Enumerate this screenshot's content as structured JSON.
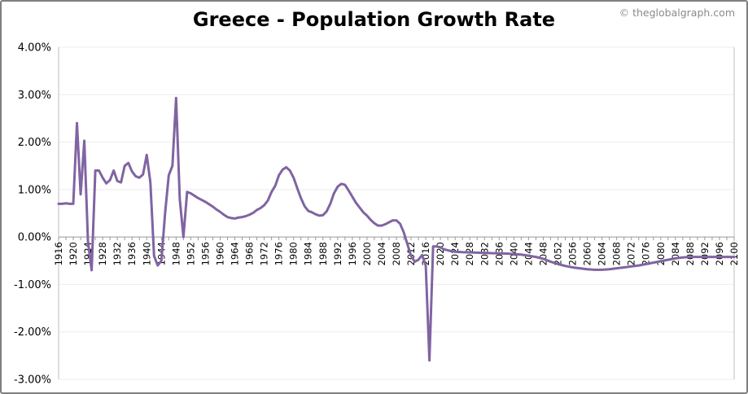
{
  "title": "Greece - Population Growth Rate",
  "credit": "© theglobalgraph.com",
  "chart_data": {
    "type": "line",
    "title": "Greece - Population Growth Rate",
    "xlabel": "",
    "ylabel": "",
    "ylim": [
      -3.0,
      4.0
    ],
    "xlim": [
      1916,
      2100
    ],
    "grid": true,
    "line_color": "#8064a2",
    "y_ticks": [
      {
        "value": 4.0,
        "label": "4.00%"
      },
      {
        "value": 3.0,
        "label": "3.00%"
      },
      {
        "value": 2.0,
        "label": "2.00%"
      },
      {
        "value": 1.0,
        "label": "1.00%"
      },
      {
        "value": 0.0,
        "label": "0.00%"
      },
      {
        "value": -1.0,
        "label": "-1.00%"
      },
      {
        "value": -2.0,
        "label": "-2.00%"
      },
      {
        "value": -3.0,
        "label": "-3.00%"
      }
    ],
    "x_ticks": [
      "1916",
      "1920",
      "1924",
      "1928",
      "1932",
      "1936",
      "1940",
      "1944",
      "1948",
      "1952",
      "1956",
      "1960",
      "1964",
      "1968",
      "1972",
      "1976",
      "1980",
      "1984",
      "1988",
      "1992",
      "1996",
      "2000",
      "2004",
      "2008",
      "2012",
      "2016",
      "2020",
      "2024",
      "2028",
      "2032",
      "2036",
      "2040",
      "2044",
      "2048",
      "2052",
      "2056",
      "2060",
      "2064",
      "2068",
      "2072",
      "2076",
      "2080",
      "2084",
      "2088",
      "2092",
      "2096",
      "2100"
    ],
    "series": [
      {
        "points": [
          [
            1916,
            0.7
          ],
          [
            1917,
            0.7
          ],
          [
            1918,
            0.71
          ],
          [
            1919,
            0.7
          ],
          [
            1920,
            0.7
          ],
          [
            1921,
            2.4
          ],
          [
            1922,
            0.9
          ],
          [
            1923,
            2.03
          ],
          [
            1924,
            -0.1
          ],
          [
            1925,
            -0.7
          ],
          [
            1926,
            1.4
          ],
          [
            1927,
            1.4
          ],
          [
            1928,
            1.25
          ],
          [
            1929,
            1.13
          ],
          [
            1930,
            1.2
          ],
          [
            1931,
            1.4
          ],
          [
            1932,
            1.18
          ],
          [
            1933,
            1.15
          ],
          [
            1934,
            1.5
          ],
          [
            1935,
            1.56
          ],
          [
            1936,
            1.38
          ],
          [
            1937,
            1.28
          ],
          [
            1938,
            1.25
          ],
          [
            1939,
            1.32
          ],
          [
            1940,
            1.73
          ],
          [
            1941,
            1.15
          ],
          [
            1942,
            -0.4
          ],
          [
            1943,
            -0.6
          ],
          [
            1944,
            -0.5
          ],
          [
            1945,
            0.5
          ],
          [
            1946,
            1.3
          ],
          [
            1947,
            1.5
          ],
          [
            1948,
            2.93
          ],
          [
            1949,
            0.8
          ],
          [
            1950,
            0.0
          ],
          [
            1951,
            0.95
          ],
          [
            1952,
            0.92
          ],
          [
            1953,
            0.87
          ],
          [
            1954,
            0.82
          ],
          [
            1955,
            0.78
          ],
          [
            1956,
            0.74
          ],
          [
            1957,
            0.69
          ],
          [
            1958,
            0.64
          ],
          [
            1959,
            0.58
          ],
          [
            1960,
            0.53
          ],
          [
            1961,
            0.47
          ],
          [
            1962,
            0.42
          ],
          [
            1963,
            0.4
          ],
          [
            1964,
            0.39
          ],
          [
            1965,
            0.41
          ],
          [
            1966,
            0.42
          ],
          [
            1967,
            0.44
          ],
          [
            1968,
            0.47
          ],
          [
            1969,
            0.51
          ],
          [
            1970,
            0.57
          ],
          [
            1971,
            0.61
          ],
          [
            1972,
            0.67
          ],
          [
            1973,
            0.77
          ],
          [
            1974,
            0.95
          ],
          [
            1975,
            1.08
          ],
          [
            1976,
            1.3
          ],
          [
            1977,
            1.42
          ],
          [
            1978,
            1.47
          ],
          [
            1979,
            1.4
          ],
          [
            1980,
            1.25
          ],
          [
            1981,
            1.03
          ],
          [
            1982,
            0.82
          ],
          [
            1983,
            0.65
          ],
          [
            1984,
            0.55
          ],
          [
            1985,
            0.52
          ],
          [
            1986,
            0.48
          ],
          [
            1987,
            0.45
          ],
          [
            1988,
            0.46
          ],
          [
            1989,
            0.54
          ],
          [
            1990,
            0.7
          ],
          [
            1991,
            0.92
          ],
          [
            1992,
            1.06
          ],
          [
            1993,
            1.12
          ],
          [
            1994,
            1.1
          ],
          [
            1995,
            0.98
          ],
          [
            1996,
            0.85
          ],
          [
            1997,
            0.72
          ],
          [
            1998,
            0.62
          ],
          [
            1999,
            0.52
          ],
          [
            2000,
            0.45
          ],
          [
            2001,
            0.36
          ],
          [
            2002,
            0.29
          ],
          [
            2003,
            0.24
          ],
          [
            2004,
            0.24
          ],
          [
            2005,
            0.27
          ],
          [
            2006,
            0.31
          ],
          [
            2007,
            0.35
          ],
          [
            2008,
            0.35
          ],
          [
            2009,
            0.28
          ],
          [
            2010,
            0.1
          ],
          [
            2011,
            -0.15
          ],
          [
            2012,
            -0.4
          ],
          [
            2013,
            -0.52
          ],
          [
            2014,
            -0.48
          ],
          [
            2015,
            -0.38
          ],
          [
            2016,
            -0.6
          ],
          [
            2017,
            -2.6
          ],
          [
            2018,
            -0.2
          ],
          [
            2019,
            -0.2
          ],
          [
            2020,
            -0.22
          ],
          [
            2021,
            -0.26
          ],
          [
            2022,
            -0.28
          ],
          [
            2023,
            -0.3
          ],
          [
            2024,
            -0.31
          ],
          [
            2026,
            -0.32
          ],
          [
            2030,
            -0.33
          ],
          [
            2034,
            -0.34
          ],
          [
            2038,
            -0.35
          ],
          [
            2042,
            -0.37
          ],
          [
            2046,
            -0.42
          ],
          [
            2048,
            -0.46
          ],
          [
            2050,
            -0.52
          ],
          [
            2052,
            -0.57
          ],
          [
            2054,
            -0.61
          ],
          [
            2056,
            -0.64
          ],
          [
            2058,
            -0.66
          ],
          [
            2060,
            -0.68
          ],
          [
            2062,
            -0.69
          ],
          [
            2064,
            -0.69
          ],
          [
            2066,
            -0.68
          ],
          [
            2068,
            -0.66
          ],
          [
            2070,
            -0.64
          ],
          [
            2072,
            -0.62
          ],
          [
            2074,
            -0.6
          ],
          [
            2076,
            -0.57
          ],
          [
            2078,
            -0.54
          ],
          [
            2080,
            -0.51
          ],
          [
            2082,
            -0.48
          ],
          [
            2084,
            -0.45
          ],
          [
            2086,
            -0.43
          ],
          [
            2088,
            -0.42
          ],
          [
            2090,
            -0.42
          ],
          [
            2092,
            -0.42
          ],
          [
            2094,
            -0.42
          ],
          [
            2096,
            -0.42
          ],
          [
            2098,
            -0.42
          ],
          [
            2100,
            -0.42
          ]
        ]
      }
    ]
  }
}
